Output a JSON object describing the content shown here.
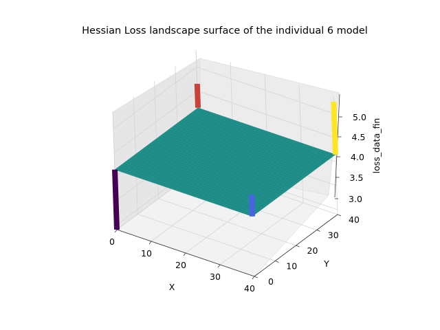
{
  "chart_data": {
    "type": "surface3d",
    "title": "Hessian Loss landscape surface of the individual 6 model",
    "xlabel": "X",
    "ylabel": "Y",
    "zlabel": "loss_data_fin",
    "xlim": [
      0,
      40
    ],
    "ylim": [
      0,
      40
    ],
    "zlim": [
      2.9,
      5.35
    ],
    "xticks": [
      "0",
      "10",
      "20",
      "30",
      "40"
    ],
    "yticks": [
      "0",
      "10",
      "20",
      "30",
      "40"
    ],
    "zticks": [
      "3.0",
      "3.5",
      "4.0",
      "4.5",
      "5.0"
    ],
    "grid": true,
    "colormap": "viridis",
    "base_level": 4.15,
    "grid_size": 41,
    "spikes": [
      {
        "x": 0,
        "y": 0,
        "z": 2.9
      },
      {
        "x": 40,
        "y": 0,
        "z": 4.6
      },
      {
        "x": 40,
        "y": 40,
        "z": 5.25
      },
      {
        "x": 0,
        "y": 40,
        "z": 4.65
      }
    ],
    "spike_colors": [
      "#440154",
      "#4a63e0",
      "#fde725",
      "#c8423a"
    ],
    "surface_color": "#21918c"
  }
}
